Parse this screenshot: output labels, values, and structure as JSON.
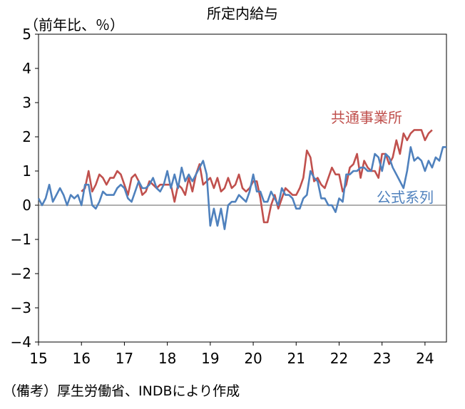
{
  "chart_data": {
    "type": "line",
    "title": "所定内給与",
    "ylabel": "（前年比、％）",
    "ylim": [
      -4,
      5
    ],
    "yticks": [
      5,
      4,
      3,
      2,
      1,
      0,
      -1,
      -2,
      -3,
      -4
    ],
    "xlim": [
      2015,
      2024.5
    ],
    "xticks": [
      {
        "x": 2015,
        "label": "15"
      },
      {
        "x": 2016,
        "label": "16"
      },
      {
        "x": 2017,
        "label": "17"
      },
      {
        "x": 2018,
        "label": "18"
      },
      {
        "x": 2019,
        "label": "19"
      },
      {
        "x": 2020,
        "label": "20"
      },
      {
        "x": 2021,
        "label": "21"
      },
      {
        "x": 2022,
        "label": "22"
      },
      {
        "x": 2023,
        "label": "23"
      },
      {
        "x": 2024,
        "label": "24"
      }
    ],
    "grid": false,
    "series": [
      {
        "name": "共通事業所",
        "color": "#c0504d",
        "start": "2016-01",
        "values": [
          0.4,
          0.5,
          1.0,
          0.4,
          0.6,
          0.9,
          0.8,
          0.6,
          0.8,
          0.8,
          1.0,
          0.9,
          0.6,
          0.3,
          0.8,
          0.9,
          0.7,
          0.3,
          0.4,
          0.7,
          0.6,
          0.5,
          0.6,
          0.6,
          0.6,
          0.6,
          0.1,
          0.6,
          0.5,
          0.3,
          0.8,
          0.4,
          0.9,
          1.2,
          0.6,
          0.7,
          0.8,
          0.5,
          0.8,
          0.4,
          0.5,
          0.8,
          0.5,
          0.6,
          0.9,
          0.5,
          0.4,
          0.5,
          0.7,
          0.7,
          0.2,
          -0.5,
          -0.5,
          0.0,
          0.3,
          -0.1,
          0.2,
          0.5,
          0.4,
          0.3,
          0.3,
          0.5,
          0.8,
          1.6,
          1.4,
          0.7,
          0.8,
          0.6,
          0.5,
          0.8,
          1.1,
          0.9,
          0.9,
          0.4,
          0.6,
          1.1,
          1.2,
          1.5,
          0.8,
          1.3,
          1.1,
          1.0,
          1.0,
          0.8,
          1.5,
          1.5,
          1.2,
          1.4,
          1.9,
          1.5,
          2.1,
          1.9,
          2.1,
          2.2,
          2.2,
          2.2,
          1.9,
          2.1,
          2.2
        ]
      },
      {
        "name": "公式系列",
        "color": "#4f81bd",
        "start": "2015-01",
        "values": [
          0.2,
          0.0,
          0.2,
          0.6,
          0.1,
          0.3,
          0.5,
          0.3,
          0.0,
          0.3,
          0.2,
          0.3,
          0.0,
          0.6,
          0.6,
          0.0,
          -0.1,
          0.1,
          0.4,
          0.3,
          0.3,
          0.3,
          0.5,
          0.6,
          0.5,
          0.2,
          0.1,
          0.4,
          0.7,
          0.5,
          0.5,
          0.6,
          0.8,
          0.5,
          0.4,
          0.6,
          1.0,
          0.5,
          0.9,
          0.5,
          1.1,
          0.7,
          0.9,
          0.7,
          0.9,
          1.1,
          1.3,
          0.9,
          -0.6,
          -0.1,
          -0.6,
          -0.1,
          -0.7,
          0.0,
          0.1,
          0.1,
          0.3,
          0.2,
          0.1,
          0.4,
          0.9,
          0.4,
          0.4,
          0.1,
          0.1,
          0.4,
          0.2,
          0.0,
          0.5,
          0.3,
          0.3,
          0.2,
          -0.1,
          -0.1,
          0.2,
          0.3,
          1.0,
          0.8,
          0.7,
          0.2,
          0.2,
          0.0,
          0.0,
          -0.2,
          0.2,
          0.1,
          0.9,
          0.9,
          1.0,
          1.0,
          1.1,
          1.1,
          1.0,
          1.0,
          1.5,
          1.4,
          1.0,
          1.5,
          1.4,
          1.1,
          0.9,
          0.7,
          0.5,
          1.0,
          1.7,
          1.3,
          1.4,
          1.3,
          1.0,
          1.3,
          1.1,
          1.4,
          1.3,
          1.7,
          1.7
        ]
      }
    ]
  },
  "source": "（備考）厚生労働省、INDBにより作成"
}
